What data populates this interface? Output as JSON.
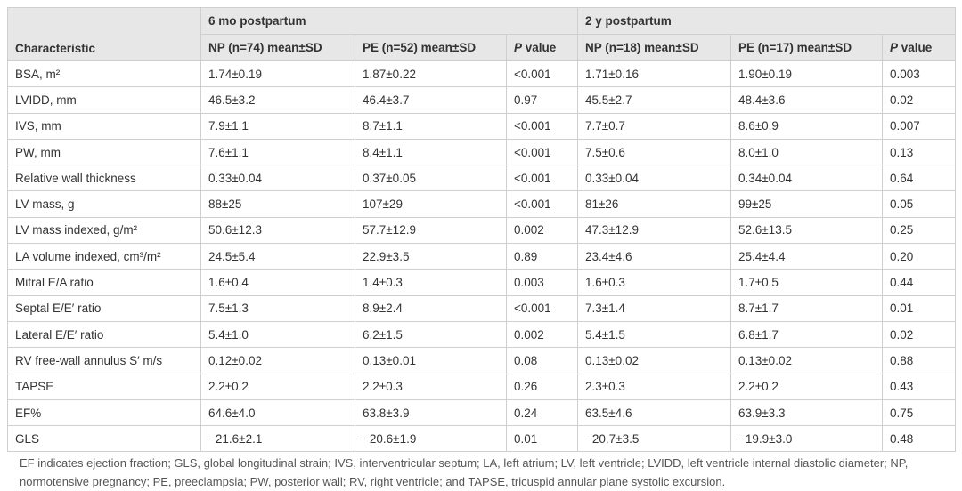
{
  "table": {
    "groups": [
      "6 mo postpartum",
      "2 y postpartum"
    ],
    "columns": [
      "Characteristic",
      "NP (n=74) mean±SD",
      "PE (n=52) mean±SD",
      "P value",
      "NP (n=18) mean±SD",
      "PE (n=17) mean±SD",
      "P value"
    ],
    "rows": [
      [
        "BSA, m²",
        "1.74±0.19",
        "1.87±0.22",
        "<0.001",
        "1.71±0.16",
        "1.90±0.19",
        "0.003"
      ],
      [
        "LVIDD, mm",
        "46.5±3.2",
        "46.4±3.7",
        "0.97",
        "45.5±2.7",
        "48.4±3.6",
        "0.02"
      ],
      [
        "IVS, mm",
        "7.9±1.1",
        "8.7±1.1",
        "<0.001",
        "7.7±0.7",
        "8.6±0.9",
        "0.007"
      ],
      [
        "PW, mm",
        "7.6±1.1",
        "8.4±1.1",
        "<0.001",
        "7.5±0.6",
        "8.0±1.0",
        "0.13"
      ],
      [
        "Relative wall thickness",
        "0.33±0.04",
        "0.37±0.05",
        "<0.001",
        "0.33±0.04",
        "0.34±0.04",
        "0.64"
      ],
      [
        "LV mass, g",
        "88±25",
        "107±29",
        "<0.001",
        "81±26",
        "99±25",
        "0.05"
      ],
      [
        "LV mass indexed, g/m²",
        "50.6±12.3",
        "57.7±12.9",
        "0.002",
        "47.3±12.9",
        "52.6±13.5",
        "0.25"
      ],
      [
        "LA volume indexed, cm³/m²",
        "24.5±5.4",
        "22.9±3.5",
        "0.89",
        "23.4±4.6",
        "25.4±4.4",
        "0.20"
      ],
      [
        "Mitral E/A ratio",
        "1.6±0.4",
        "1.4±0.3",
        "0.003",
        "1.6±0.3",
        "1.7±0.5",
        "0.44"
      ],
      [
        "Septal E/E′ ratio",
        "7.5±1.3",
        "8.9±2.4",
        "<0.001",
        "7.3±1.4",
        "8.7±1.7",
        "0.01"
      ],
      [
        "Lateral E/E′ ratio",
        "5.4±1.0",
        "6.2±1.5",
        "0.002",
        "5.4±1.5",
        "6.8±1.7",
        "0.02"
      ],
      [
        "RV free-wall annulus S′ m/s",
        "0.12±0.02",
        "0.13±0.01",
        "0.08",
        "0.13±0.02",
        "0.13±0.02",
        "0.88"
      ],
      [
        "TAPSE",
        "2.2±0.2",
        "2.2±0.3",
        "0.26",
        "2.3±0.3",
        "2.2±0.2",
        "0.43"
      ],
      [
        "EF%",
        "64.6±4.0",
        "63.8±3.9",
        "0.24",
        "63.5±4.6",
        "63.9±3.3",
        "0.75"
      ],
      [
        "GLS",
        "−21.6±2.1",
        "−20.6±1.9",
        "0.01",
        "−20.7±3.5",
        "−19.9±3.0",
        "0.48"
      ]
    ]
  },
  "footnote": "EF indicates ejection fraction; GLS, global longitudinal strain; IVS, interventricular septum; LA, left atrium; LV, left ventricle; LVIDD, left ventricle internal diastolic diameter; NP, normotensive pregnancy; PE, preeclampsia; PW, posterior wall; RV, right ventricle; and TAPSE, tricuspid annular plane systolic excursion."
}
